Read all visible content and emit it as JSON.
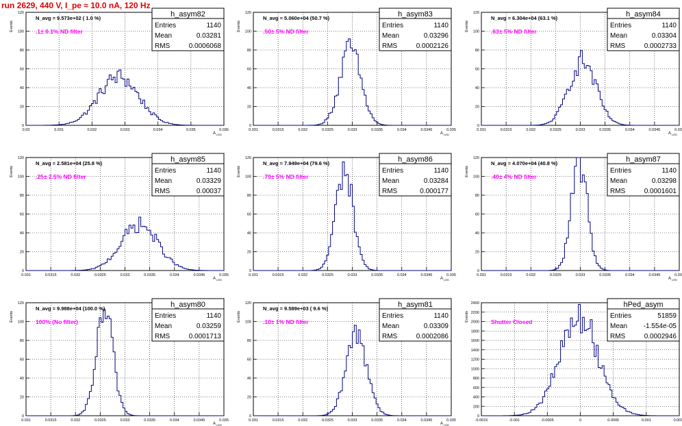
{
  "page_title": "run 2629,   440 V, I_pe ≈ 10.0 nA, 120 Hz",
  "colors": {
    "title": "#e00000",
    "filter": "#ff00ff",
    "hist": "#000080",
    "grid": "#000000"
  },
  "chart_data": [
    {
      "type": "bar",
      "name": "h_asym82",
      "stats": {
        "Entries": "1140",
        "Mean": "0.03281",
        "RMS": "0.0006068"
      },
      "navg_label": "N_avg = 9.573e+02 ( 1.0 %)",
      "filter_label": ".1± 0.1% ND filter",
      "ylabel": "Events",
      "xlabel": "A_{LED}",
      "xlim": [
        0.03,
        0.036
      ],
      "ylim": [
        0,
        120
      ],
      "xticks": [
        0.03,
        0.031,
        0.032,
        0.033,
        0.034,
        0.035,
        0.036
      ],
      "xtick_labels": [
        "0.03",
        "0.031",
        "0.032",
        "0.033",
        "0.034",
        "0.035",
        "0.036"
      ],
      "yticks": [
        0,
        20,
        40,
        60,
        80,
        100,
        120
      ],
      "mean": 0.03281,
      "rms": 0.0006068,
      "peak": 53,
      "nbins": 100
    },
    {
      "type": "bar",
      "name": "h_asym83",
      "stats": {
        "Entries": "1140",
        "Mean": "0.03296",
        "RMS": "0.0002126"
      },
      "navg_label": "N_avg = 5.060e+04 (50.7 %)",
      "filter_label": ".50± 5% ND filter",
      "ylabel": "Events",
      "xlabel": "A_{LED}",
      "xlim": [
        0.031,
        0.035
      ],
      "ylim": [
        0,
        120
      ],
      "xticks": [
        0.031,
        0.0315,
        0.032,
        0.0325,
        0.033,
        0.0335,
        0.034,
        0.0345,
        0.035
      ],
      "xtick_labels": [
        "0.031",
        "0.0315",
        "0.032",
        "0.0325",
        "0.033",
        "0.0335",
        "0.034",
        "0.0345",
        "0.035"
      ],
      "yticks": [
        0,
        20,
        40,
        60,
        80,
        100,
        120
      ],
      "mean": 0.03296,
      "rms": 0.0002126,
      "peak": 83,
      "nbins": 100
    },
    {
      "type": "bar",
      "name": "h_asym84",
      "stats": {
        "Entries": "1140",
        "Mean": "0.03304",
        "RMS": "0.0002733"
      },
      "navg_label": "N_avg = 6.304e+04 (63.1 %)",
      "filter_label": ".63± 5% ND filter",
      "ylabel": "Events",
      "xlabel": "A_{LED}",
      "xlim": [
        0.031,
        0.035
      ],
      "ylim": [
        0,
        120
      ],
      "xticks": [
        0.031,
        0.0315,
        0.032,
        0.0325,
        0.033,
        0.0335,
        0.034,
        0.0345,
        0.035
      ],
      "xtick_labels": [
        "0.031",
        "0.0315",
        "0.032",
        "0.0325",
        "0.033",
        "0.0335",
        "0.034",
        "0.0345",
        "0.035"
      ],
      "yticks": [
        0,
        20,
        40,
        60,
        80,
        100,
        120
      ],
      "mean": 0.03304,
      "rms": 0.0002733,
      "peak": 70,
      "nbins": 100
    },
    {
      "type": "bar",
      "name": "h_asym85",
      "stats": {
        "Entries": "1140",
        "Mean": "0.03329",
        "RMS": "0.00037"
      },
      "navg_label": "N_avg = 2.581e+04 (25.8 %)",
      "filter_label": ".25± 2.5% ND filter",
      "ylabel": "Events",
      "xlabel": "A_{LED}",
      "xlim": [
        0.031,
        0.035
      ],
      "ylim": [
        0,
        120
      ],
      "xticks": [
        0.031,
        0.0315,
        0.032,
        0.0325,
        0.033,
        0.0335,
        0.034,
        0.0345,
        0.035
      ],
      "xtick_labels": [
        "0.031",
        "0.0315",
        "0.032",
        "0.0325",
        "0.033",
        "0.0335",
        "0.034",
        "0.0345",
        "0.035"
      ],
      "yticks": [
        0,
        20,
        40,
        60,
        80,
        100,
        120
      ],
      "mean": 0.03329,
      "rms": 0.00037,
      "peak": 50,
      "nbins": 100
    },
    {
      "type": "bar",
      "name": "h_asym86",
      "stats": {
        "Entries": "1140",
        "Mean": "0.03284",
        "RMS": "0.000177"
      },
      "navg_label": "N_avg = 7.949e+04 (79.6 %)",
      "filter_label": ".79± 5% ND filter",
      "ylabel": "Events",
      "xlabel": "A_{LED}",
      "xlim": [
        0.031,
        0.035
      ],
      "ylim": [
        0,
        120
      ],
      "xticks": [
        0.031,
        0.0315,
        0.032,
        0.0325,
        0.033,
        0.0335,
        0.034,
        0.0345,
        0.035
      ],
      "xtick_labels": [
        "0.031",
        "0.0315",
        "0.032",
        "0.0325",
        "0.033",
        "0.0335",
        "0.034",
        "0.0345",
        "0.035"
      ],
      "yticks": [
        0,
        20,
        40,
        60,
        80,
        100,
        120
      ],
      "mean": 0.03284,
      "rms": 0.000177,
      "peak": 110,
      "nbins": 100
    },
    {
      "type": "bar",
      "name": "h_asym87",
      "stats": {
        "Entries": "1140",
        "Mean": "0.03298",
        "RMS": "0.0001601"
      },
      "navg_label": "N_avg = 4.070e+04 (40.8 %)",
      "filter_label": ".40± 4% ND filter",
      "ylabel": "Events",
      "xlabel": "A_{LED}",
      "xlim": [
        0.031,
        0.035
      ],
      "ylim": [
        0,
        120
      ],
      "xticks": [
        0.031,
        0.0315,
        0.032,
        0.0325,
        0.033,
        0.0335,
        0.034,
        0.0345,
        0.035
      ],
      "xtick_labels": [
        "0.031",
        "0.0315",
        "0.032",
        "0.0325",
        "0.033",
        "0.0335",
        "0.034",
        "0.0345",
        "0.035"
      ],
      "yticks": [
        0,
        20,
        40,
        60,
        80,
        100,
        120
      ],
      "mean": 0.03298,
      "rms": 0.0001601,
      "peak": 118,
      "nbins": 100
    },
    {
      "type": "bar",
      "name": "h_asym80",
      "stats": {
        "Entries": "1140",
        "Mean": "0.03259",
        "RMS": "0.0001713"
      },
      "navg_label": "N_avg = 9.988e+04 (100.0 %)",
      "filter_label": "100% (No filter)",
      "ylabel": "Events",
      "xlabel": "A_{LED}",
      "xlim": [
        0.031,
        0.035
      ],
      "ylim": [
        0,
        120
      ],
      "xticks": [
        0.031,
        0.0315,
        0.032,
        0.0325,
        0.033,
        0.0335,
        0.034,
        0.0345,
        0.035
      ],
      "xtick_labels": [
        "0.031",
        "0.0315",
        "0.032",
        "0.0325",
        "0.033",
        "0.0335",
        "0.034",
        "0.0345",
        "0.035"
      ],
      "yticks": [
        0,
        20,
        40,
        60,
        80,
        100,
        120
      ],
      "mean": 0.03259,
      "rms": 0.0001713,
      "peak": 112,
      "nbins": 100
    },
    {
      "type": "bar",
      "name": "h_asym81",
      "stats": {
        "Entries": "1140",
        "Mean": "0.03309",
        "RMS": "0.0002086"
      },
      "navg_label": "N_avg = 9.589e+03 ( 9.6 %)",
      "filter_label": ".10± 1% ND filter",
      "ylabel": "Events",
      "xlabel": "A_{LED}",
      "xlim": [
        0.031,
        0.035
      ],
      "ylim": [
        0,
        120
      ],
      "xticks": [
        0.031,
        0.0315,
        0.032,
        0.0325,
        0.033,
        0.0335,
        0.034,
        0.0345,
        0.035
      ],
      "xtick_labels": [
        "0.031",
        "0.0315",
        "0.032",
        "0.0325",
        "0.033",
        "0.0335",
        "0.034",
        "0.0345",
        "0.035"
      ],
      "yticks": [
        0,
        20,
        40,
        60,
        80,
        100,
        120
      ],
      "mean": 0.03309,
      "rms": 0.0002086,
      "peak": 90,
      "nbins": 100
    },
    {
      "type": "bar",
      "name": "hPed_asym",
      "stats": {
        "Entries": "51859",
        "Mean": "-1.554e-05",
        "RMS": "0.0002946"
      },
      "navg_label": "",
      "filter_label": "Shutter Closed",
      "ylabel": "Events",
      "xlabel": "",
      "xlim": [
        -0.0015,
        0.0015
      ],
      "ylim": [
        0,
        2400
      ],
      "xticks": [
        -0.0015,
        -0.001,
        -0.0005,
        0,
        0.0005,
        0.001,
        0.0015
      ],
      "xtick_labels": [
        "-0.0015",
        "-0.001",
        "-0.0005",
        "0",
        "0.0005",
        "0.001",
        "0.0015"
      ],
      "yticks": [
        0,
        200,
        400,
        600,
        800,
        1000,
        1200,
        1400,
        1600,
        1800,
        2000,
        2200,
        2400
      ],
      "mean": -1.55e-05,
      "rms": 0.0002946,
      "peak": 2150,
      "nbins": 100
    }
  ]
}
